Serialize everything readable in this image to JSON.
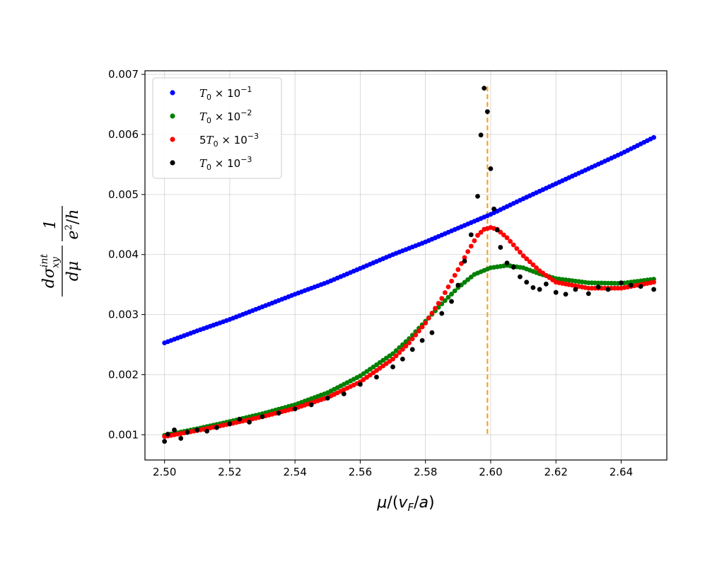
{
  "chart_data": {
    "type": "scatter",
    "title": "",
    "xlabel": "μ/(v_F/a)",
    "ylabel": "dσ_xy^int/dμ · 1/(e²/h)",
    "xlim": [
      2.494,
      2.654
    ],
    "ylim": [
      0.00058,
      0.00706
    ],
    "xticks": [
      2.5,
      2.52,
      2.54,
      2.56,
      2.58,
      2.6,
      2.62,
      2.64
    ],
    "xtick_labels": [
      "2.50",
      "2.52",
      "2.54",
      "2.56",
      "2.58",
      "2.60",
      "2.62",
      "2.64"
    ],
    "yticks": [
      0.001,
      0.002,
      0.003,
      0.004,
      0.005,
      0.006,
      0.007
    ],
    "ytick_labels": [
      "0.001",
      "0.002",
      "0.003",
      "0.004",
      "0.005",
      "0.006",
      "0.007"
    ],
    "grid": true,
    "legend_position": "top-left",
    "vline": {
      "x": 2.599,
      "y_range": [
        0.00097,
        0.0068
      ],
      "color": "#f5a623",
      "style": "dashed"
    },
    "series": [
      {
        "name": "T0 × 10^-1",
        "label_parts": {
          "coef": "",
          "sym": "T",
          "sub": "0",
          "times": " × 10",
          "exp": "−1"
        },
        "color": "#0000ff",
        "x": [
          2.5,
          2.51,
          2.52,
          2.53,
          2.54,
          2.55,
          2.56,
          2.57,
          2.58,
          2.59,
          2.6,
          2.61,
          2.62,
          2.63,
          2.64,
          2.65
        ],
        "y": [
          0.00253,
          0.00273,
          0.00292,
          0.00313,
          0.00334,
          0.00354,
          0.00377,
          0.004,
          0.00421,
          0.00444,
          0.00467,
          0.00493,
          0.00518,
          0.00543,
          0.00568,
          0.00595
        ]
      },
      {
        "name": "T0 × 10^-2",
        "label_parts": {
          "coef": "",
          "sym": "T",
          "sub": "0",
          "times": " × 10",
          "exp": "−2"
        },
        "color": "#008000",
        "x": [
          2.5,
          2.51,
          2.52,
          2.53,
          2.54,
          2.55,
          2.56,
          2.57,
          2.575,
          2.58,
          2.585,
          2.59,
          2.595,
          2.6,
          2.605,
          2.61,
          2.615,
          2.62,
          2.63,
          2.64,
          2.65
        ],
        "y": [
          0.00099,
          0.0011,
          0.00122,
          0.00135,
          0.0015,
          0.0017,
          0.00198,
          0.00235,
          0.0026,
          0.00289,
          0.00318,
          0.00345,
          0.00367,
          0.00378,
          0.00382,
          0.00378,
          0.00368,
          0.0036,
          0.00353,
          0.00352,
          0.00359
        ]
      },
      {
        "name": "5T0 × 10^-3",
        "label_parts": {
          "coef": "5",
          "sym": "T",
          "sub": "0",
          "times": " × 10",
          "exp": "−3"
        },
        "color": "#ff0000",
        "x": [
          2.5,
          2.51,
          2.52,
          2.53,
          2.54,
          2.55,
          2.56,
          2.57,
          2.575,
          2.58,
          2.585,
          2.59,
          2.593,
          2.596,
          2.598,
          2.6,
          2.602,
          2.605,
          2.608,
          2.61,
          2.615,
          2.62,
          2.63,
          2.64,
          2.65
        ],
        "y": [
          0.00097,
          0.00107,
          0.00118,
          0.0013,
          0.00144,
          0.00162,
          0.00188,
          0.00226,
          0.00253,
          0.00286,
          0.00327,
          0.00375,
          0.00405,
          0.00432,
          0.00442,
          0.00445,
          0.00442,
          0.00428,
          0.0041,
          0.00398,
          0.00373,
          0.00354,
          0.00344,
          0.00344,
          0.00354
        ]
      },
      {
        "name": "T0 × 10^-3",
        "label_parts": {
          "coef": "",
          "sym": "T",
          "sub": "0",
          "times": " × 10",
          "exp": "−3"
        },
        "color": "#000000",
        "x": [
          2.5,
          2.501,
          2.503,
          2.505,
          2.507,
          2.51,
          2.513,
          2.516,
          2.52,
          2.523,
          2.526,
          2.53,
          2.535,
          2.54,
          2.545,
          2.55,
          2.555,
          2.56,
          2.565,
          2.57,
          2.573,
          2.576,
          2.579,
          2.582,
          2.585,
          2.588,
          2.59,
          2.592,
          2.594,
          2.596,
          2.597,
          2.598,
          2.599,
          2.6,
          2.601,
          2.602,
          2.603,
          2.605,
          2.607,
          2.609,
          2.611,
          2.613,
          2.615,
          2.617,
          2.62,
          2.623,
          2.626,
          2.63,
          2.633,
          2.636,
          2.64,
          2.643,
          2.646,
          2.65
        ],
        "y": [
          0.00089,
          0.00101,
          0.00108,
          0.00094,
          0.00104,
          0.00108,
          0.00106,
          0.00112,
          0.00118,
          0.00126,
          0.00121,
          0.0013,
          0.00136,
          0.00143,
          0.0015,
          0.00161,
          0.00168,
          0.00184,
          0.00196,
          0.00213,
          0.00226,
          0.00242,
          0.00257,
          0.0027,
          0.00302,
          0.00322,
          0.00349,
          0.00389,
          0.00433,
          0.00497,
          0.00599,
          0.00677,
          0.00638,
          0.00543,
          0.00476,
          0.00441,
          0.00412,
          0.00386,
          0.00379,
          0.00363,
          0.00354,
          0.00345,
          0.00342,
          0.00351,
          0.00337,
          0.00334,
          0.00342,
          0.00335,
          0.00346,
          0.00342,
          0.00353,
          0.00349,
          0.00347,
          0.00342
        ]
      }
    ]
  }
}
